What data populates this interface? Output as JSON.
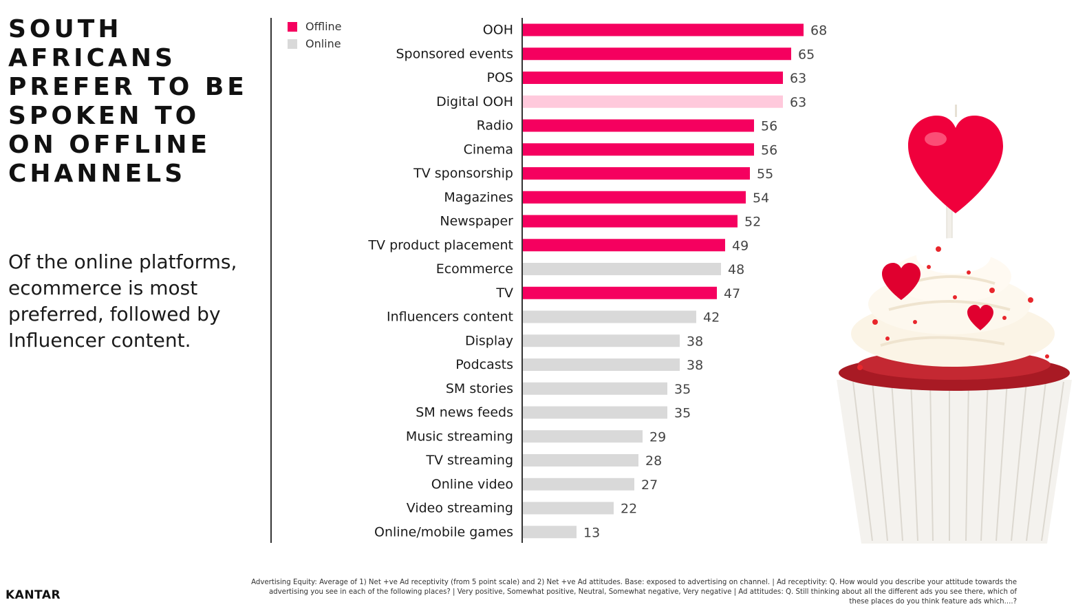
{
  "headline": "SOUTH\nAFRICANS\nPREFER TO BE\nSPOKEN TO\nON OFFLINE\nCHANNELS",
  "subtext": "Of the online platforms,\necommerce is most\npreferred, followed by\nInfluencer content.",
  "logo": "KANTAR",
  "footnote": "Advertising Equity: Average of 1) Net +ve Ad receptivity (from 5 point scale) and 2) Net +ve Ad attitudes. Base: exposed to advertising on channel. | Ad receptivity: Q. How would you describe your attitude towards the advertising you see in each of the following places? | Very positive, Somewhat positive, Neutral, Somewhat negative, Very negative | Ad attitudes: Q. Still thinking about all the different ads you see there, which of these places do you think feature ads which....?",
  "colors": {
    "offline": "#F5005F",
    "online": "#D9D9D9",
    "highlight": "#FFC9DC"
  },
  "chart_data": {
    "type": "bar",
    "orientation": "horizontal",
    "title": "",
    "xlabel": "",
    "ylabel": "",
    "xlim": [
      0,
      75
    ],
    "grid": false,
    "legend": {
      "placement": "top-left",
      "entries": [
        {
          "name": "Offline",
          "color": "#F5005F"
        },
        {
          "name": "Online",
          "color": "#D9D9D9"
        }
      ]
    },
    "categories": [
      "OOH",
      "Sponsored events",
      "POS",
      "Digital OOH",
      "Radio",
      "Cinema",
      "TV sponsorship",
      "Magazines",
      "Newspaper",
      "TV product placement",
      "Ecommerce",
      "TV",
      "Influencers content",
      "Display",
      "Podcasts",
      "SM stories",
      "SM news feeds",
      "Music streaming",
      "TV streaming",
      "Online video",
      "Video streaming",
      "Online/mobile games"
    ],
    "values": [
      68,
      65,
      63,
      63,
      56,
      56,
      55,
      54,
      52,
      49,
      48,
      47,
      42,
      38,
      38,
      35,
      35,
      29,
      28,
      27,
      22,
      13
    ],
    "group": [
      "Offline",
      "Offline",
      "Offline",
      "Offline",
      "Offline",
      "Offline",
      "Offline",
      "Offline",
      "Offline",
      "Offline",
      "Online",
      "Offline",
      "Online",
      "Online",
      "Online",
      "Online",
      "Online",
      "Online",
      "Online",
      "Online",
      "Online",
      "Online"
    ],
    "bar_colors": [
      "#F5005F",
      "#F5005F",
      "#F5005F",
      "#FFC9DC",
      "#F5005F",
      "#F5005F",
      "#F5005F",
      "#F5005F",
      "#F5005F",
      "#F5005F",
      "#D9D9D9",
      "#F5005F",
      "#D9D9D9",
      "#D9D9D9",
      "#D9D9D9",
      "#D9D9D9",
      "#D9D9D9",
      "#D9D9D9",
      "#D9D9D9",
      "#D9D9D9",
      "#D9D9D9",
      "#D9D9D9"
    ]
  }
}
